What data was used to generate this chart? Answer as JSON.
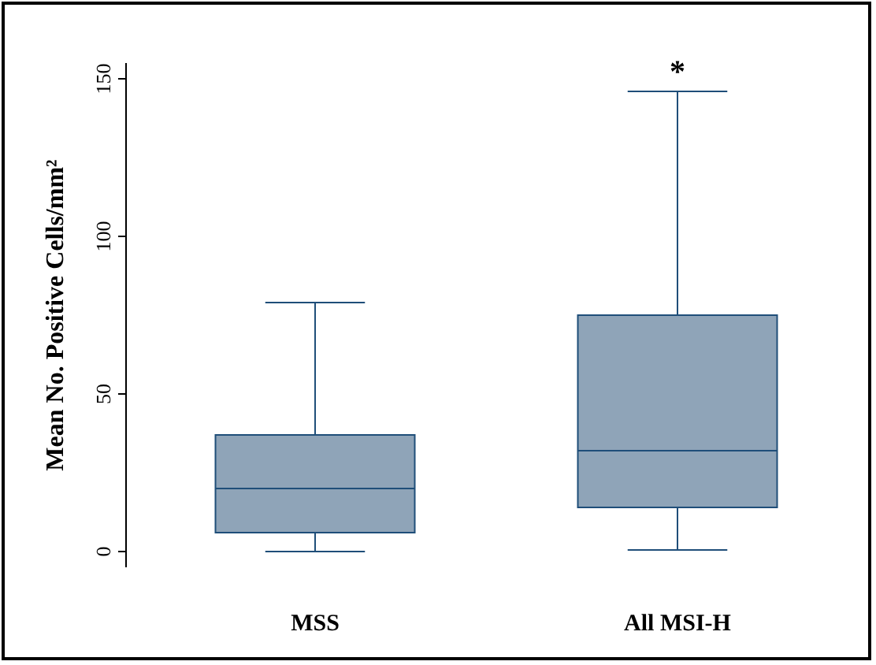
{
  "chart_data": {
    "type": "box",
    "ylabel": "Mean No. Positive Cells/mm²",
    "categories": [
      "MSS",
      "All MSI-H"
    ],
    "color": "#8fa4b8",
    "boxes": [
      {
        "low": 0,
        "q1": 6,
        "median": 20,
        "q3": 37,
        "high": 79
      },
      {
        "low": 0.5,
        "q1": 14,
        "median": 32,
        "q3": 75,
        "high": 146
      }
    ],
    "ylim": [
      -5,
      155
    ],
    "yticks": [
      0,
      50,
      100,
      150
    ],
    "grid": false,
    "annotations": [
      {
        "text": "*",
        "x": "All MSI-H",
        "y": 146
      }
    ]
  }
}
